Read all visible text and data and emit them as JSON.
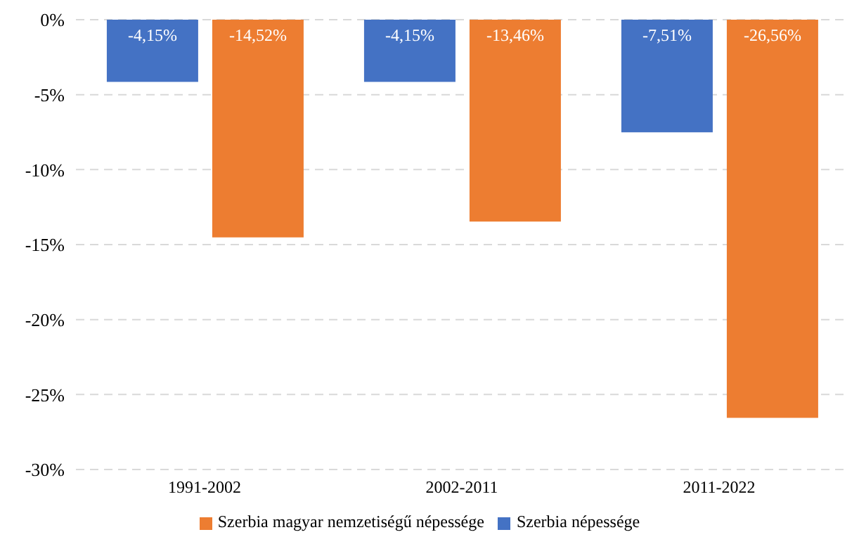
{
  "chart_data": {
    "type": "bar",
    "categories": [
      "1991-2002",
      "2002-2011",
      "2011-2022"
    ],
    "series": [
      {
        "name": "Szerbia népessége",
        "color": "#4472c4",
        "values": [
          -4.15,
          -4.15,
          -7.51
        ],
        "value_labels": [
          "-4,15%",
          "-4,15%",
          "-7,51%"
        ]
      },
      {
        "name": "Szerbia magyar nemzetiségű népessége",
        "color": "#ed7d31",
        "values": [
          -14.52,
          -13.46,
          -26.56
        ],
        "value_labels": [
          "-14,52%",
          "-13,46%",
          "-26,56%"
        ]
      }
    ],
    "ylim": [
      -30,
      0
    ],
    "yticks": [
      {
        "value": 0,
        "label": "0%"
      },
      {
        "value": -5,
        "label": "-5%"
      },
      {
        "value": -10,
        "label": "-10%"
      },
      {
        "value": -15,
        "label": "-15%"
      },
      {
        "value": -20,
        "label": "-20%"
      },
      {
        "value": -25,
        "label": "-25%"
      },
      {
        "value": -30,
        "label": "-30%"
      }
    ],
    "grid": "y",
    "legend": "bottom"
  }
}
